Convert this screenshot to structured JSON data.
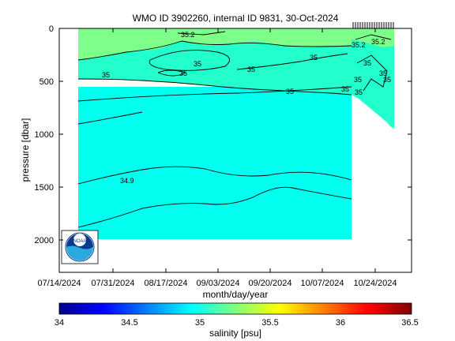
{
  "chart_data": {
    "type": "heatmap",
    "title": "WMO ID 3902260, internal ID 9831, 30-Oct-2024",
    "xlabel": "month/day/year",
    "ylabel": "pressure [dbar]",
    "x_ticks": [
      "07/14/2024",
      "07/31/2024",
      "08/17/2024",
      "09/03/2024",
      "09/20/2024",
      "10/07/2024",
      "10/24/2024"
    ],
    "y_ticks": [
      0,
      500,
      1000,
      1500,
      2000
    ],
    "ylim": [
      0,
      2300
    ],
    "y_reversed": true,
    "colorbar": {
      "label": "salinity [psu]",
      "ticks": [
        "34",
        "34.5",
        "35",
        "35.5",
        "36",
        "36.5"
      ],
      "range": [
        34,
        36.5
      ],
      "colormap": "jet"
    },
    "field_colors": {
      "s35_0": "#00ffee",
      "s35_1": "#22ffcc",
      "s35_2": "#7dff8a"
    },
    "contour_labels": [
      "35.2",
      "35",
      "35",
      "35.2",
      "35",
      "35",
      "35",
      "35",
      "35",
      "35",
      "35",
      "35.2",
      "35",
      "35",
      "35",
      "34.9"
    ]
  },
  "logo": {
    "name": "NOAA"
  }
}
